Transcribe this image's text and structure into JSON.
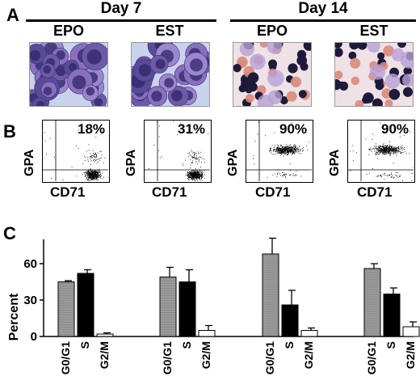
{
  "panels": {
    "A": "A",
    "B": "B",
    "C": "C"
  },
  "days": [
    {
      "label": "Day 7"
    },
    {
      "label": "Day 14"
    }
  ],
  "micrographs": [
    {
      "condition": "EPO",
      "day": "Day 7",
      "style": "large-blue-cells"
    },
    {
      "condition": "EST",
      "day": "Day 7",
      "style": "large-blue-cells"
    },
    {
      "condition": "EPO",
      "day": "Day 14",
      "style": "small-dark-cells-with-red"
    },
    {
      "condition": "EST",
      "day": "Day 14",
      "style": "small-dark-cells-with-red"
    }
  ],
  "flow_plots": [
    {
      "percent": "18%",
      "y_label": "GPA",
      "x_label": "CD71",
      "population": "low-GPA"
    },
    {
      "percent": "31%",
      "y_label": "GPA",
      "x_label": "CD71",
      "population": "low-GPA"
    },
    {
      "percent": "90%",
      "y_label": "GPA",
      "x_label": "CD71",
      "population": "high-GPA"
    },
    {
      "percent": "90%",
      "y_label": "GPA",
      "x_label": "CD71",
      "population": "high-GPA"
    }
  ],
  "chart_data": {
    "type": "bar",
    "ylabel": "Percent",
    "ylim": [
      0,
      80
    ],
    "yticks": [
      "60",
      "30",
      "0"
    ],
    "categories": [
      "G0/G1",
      "S",
      "G2/M"
    ],
    "groups": [
      {
        "values": [
          45,
          52,
          2
        ],
        "errors": [
          1,
          3,
          1
        ]
      },
      {
        "values": [
          49,
          45,
          5
        ],
        "errors": [
          8,
          10,
          4
        ]
      },
      {
        "values": [
          68,
          26,
          5
        ],
        "errors": [
          13,
          12,
          2
        ]
      },
      {
        "values": [
          56,
          35,
          8
        ],
        "errors": [
          4,
          5,
          4
        ]
      }
    ],
    "colors": {
      "G0/G1": "#9a9a9a",
      "S": "#000000",
      "G2/M": "#ffffff"
    }
  }
}
